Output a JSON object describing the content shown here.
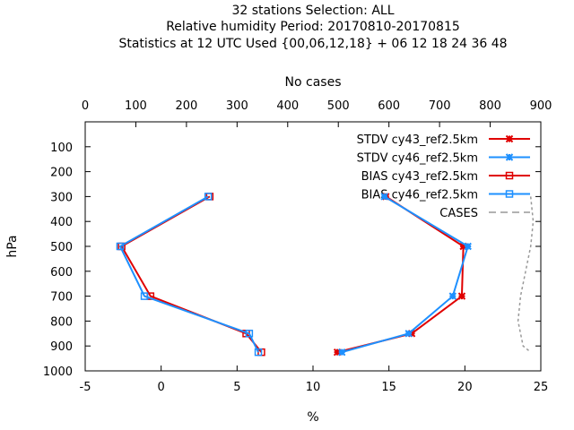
{
  "chart_data": {
    "type": "line",
    "title_lines": [
      "32 stations Selection: ALL",
      "Relative humidity  Period: 20170810-20170815",
      "Statistics at 12 UTC  Used {00,06,12,18} + 06 12 18 24 36 48"
    ],
    "xlabel": "%",
    "ylabel": "hPa",
    "x2label": "No cases",
    "xlim": [
      -5,
      25
    ],
    "ylim": [
      1000,
      0
    ],
    "x2lim": [
      0,
      900
    ],
    "x_ticks": [
      "-5",
      "0",
      "5",
      "10",
      "15",
      "20",
      "25"
    ],
    "y_ticks": [
      "100",
      "200",
      "300",
      "400",
      "500",
      "600",
      "700",
      "800",
      "900",
      "1000"
    ],
    "x2_ticks": [
      "0",
      "100",
      "200",
      "300",
      "400",
      "500",
      "600",
      "700",
      "800",
      "900"
    ],
    "series": [
      {
        "name": "STDV cy43_ref2.5km",
        "color": "#e00000",
        "marker": "x",
        "points": [
          [
            14.8,
            300
          ],
          [
            19.9,
            500
          ],
          [
            19.8,
            700
          ],
          [
            16.5,
            850
          ],
          [
            11.6,
            925
          ]
        ]
      },
      {
        "name": "STDV cy46_ref2.5km",
        "color": "#1e90ff",
        "marker": "x",
        "points": [
          [
            14.7,
            300
          ],
          [
            20.2,
            500
          ],
          [
            19.2,
            700
          ],
          [
            16.3,
            850
          ],
          [
            11.9,
            925
          ]
        ]
      },
      {
        "name": "BIAS cy43_ref2.5km",
        "color": "#e00000",
        "marker": "square",
        "points": [
          [
            3.2,
            300
          ],
          [
            -2.6,
            500
          ],
          [
            -0.7,
            700
          ],
          [
            5.6,
            850
          ],
          [
            6.6,
            925
          ]
        ]
      },
      {
        "name": "BIAS cy46_ref2.5km",
        "color": "#1e90ff",
        "marker": "square",
        "points": [
          [
            3.1,
            300
          ],
          [
            -2.7,
            500
          ],
          [
            -1.1,
            700
          ],
          [
            5.8,
            850
          ],
          [
            6.4,
            925
          ]
        ]
      },
      {
        "name": "CASES",
        "color": "#999999",
        "marker": "none",
        "axis": "x2",
        "points": [
          [
            880,
            300
          ],
          [
            885,
            400
          ],
          [
            880,
            500
          ],
          [
            870,
            600
          ],
          [
            860,
            700
          ],
          [
            855,
            800
          ],
          [
            865,
            900
          ],
          [
            880,
            925
          ]
        ]
      }
    ]
  }
}
